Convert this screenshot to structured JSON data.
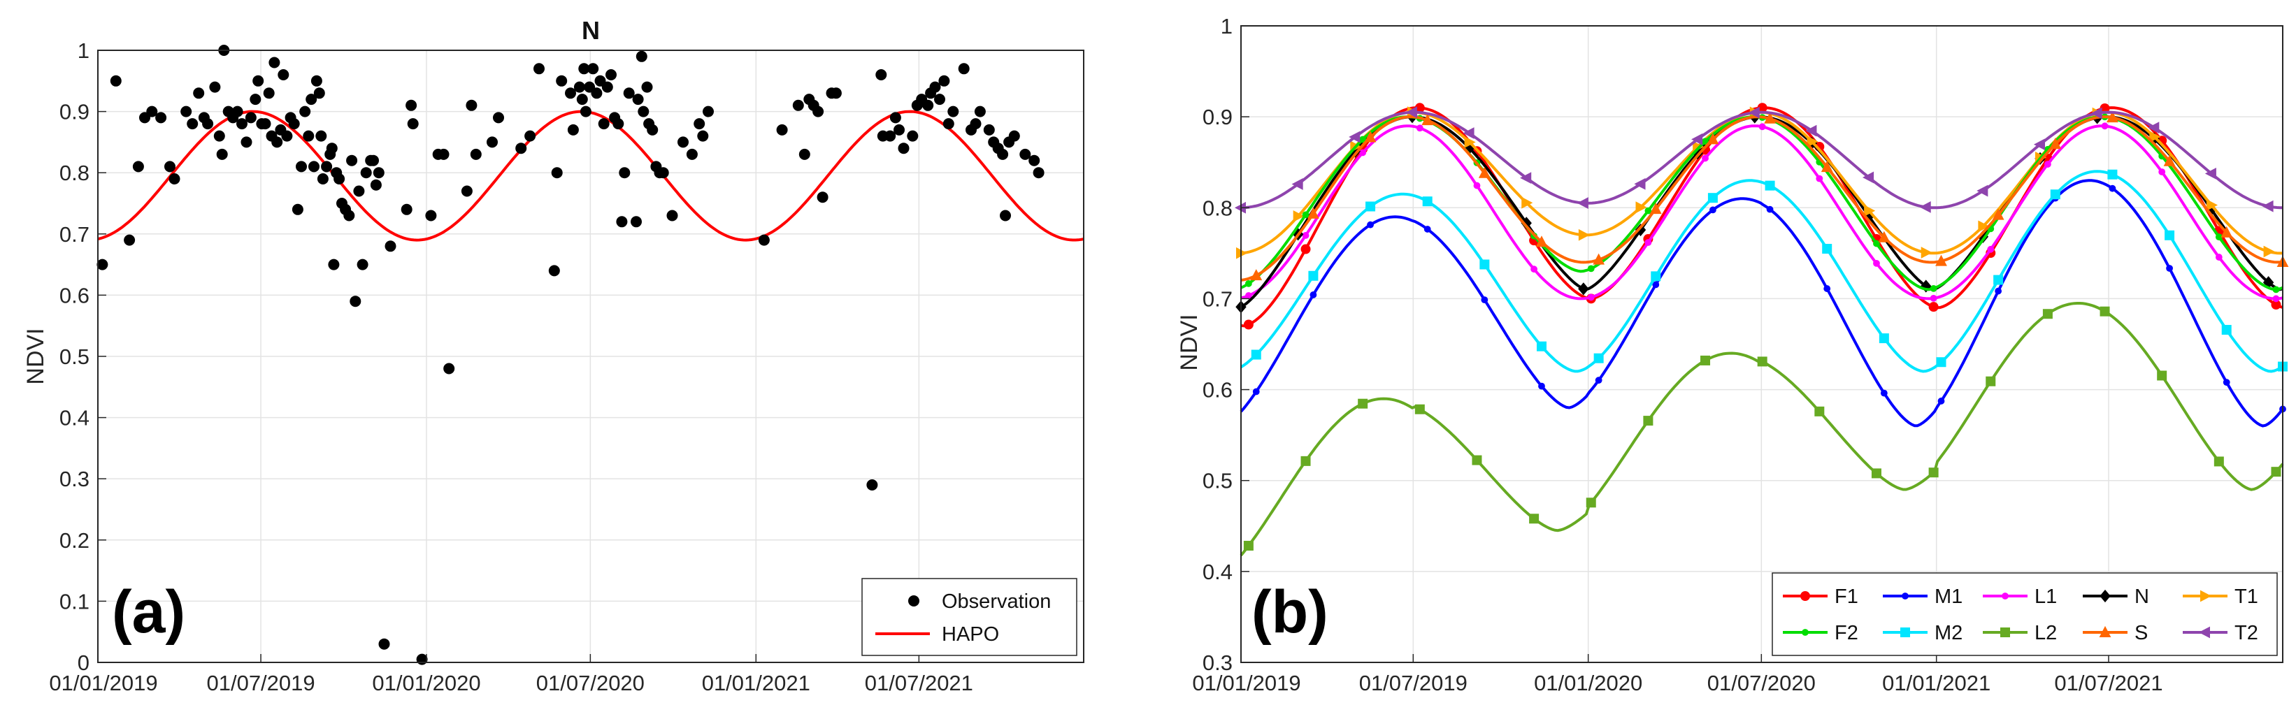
{
  "chart_data": [
    {
      "panel": "(a)",
      "type": "scatter",
      "title": "N",
      "ylabel": "NDVI",
      "xlabel": "",
      "ylim": [
        0,
        1
      ],
      "yticks": [
        "0",
        "0.1",
        "0.2",
        "0.3",
        "0.4",
        "0.5",
        "0.6",
        "0.7",
        "0.8",
        "0.9",
        "1"
      ],
      "xlim": [
        0,
        1095
      ],
      "xticks": [
        {
          "day": 0,
          "label": "01/01/2019"
        },
        {
          "day": 181,
          "label": "01/07/2019"
        },
        {
          "day": 365,
          "label": "01/01/2020"
        },
        {
          "day": 547,
          "label": "01/07/2020"
        },
        {
          "day": 731,
          "label": "01/01/2021"
        },
        {
          "day": 912,
          "label": "01/07/2021"
        }
      ],
      "grid": true,
      "legend": {
        "position": "bottom-right",
        "entries": [
          {
            "name": "Observation",
            "marker": "dot"
          },
          {
            "name": "HAPO",
            "marker": "line"
          }
        ]
      },
      "hapo_model": {
        "mean": 0.795,
        "amplitude": 0.105,
        "peak_day": 172,
        "period_days": 365
      },
      "observations": [
        [
          5,
          0.65
        ],
        [
          20,
          0.95
        ],
        [
          35,
          0.69
        ],
        [
          45,
          0.81
        ],
        [
          52,
          0.89
        ],
        [
          60,
          0.9
        ],
        [
          70,
          0.89
        ],
        [
          80,
          0.81
        ],
        [
          85,
          0.79
        ],
        [
          98,
          0.9
        ],
        [
          105,
          0.88
        ],
        [
          112,
          0.93
        ],
        [
          118,
          0.89
        ],
        [
          122,
          0.88
        ],
        [
          130,
          0.94
        ],
        [
          135,
          0.86
        ],
        [
          138,
          0.83
        ],
        [
          140,
          1.0
        ],
        [
          145,
          0.9
        ],
        [
          150,
          0.89
        ],
        [
          155,
          0.9
        ],
        [
          160,
          0.88
        ],
        [
          165,
          0.85
        ],
        [
          170,
          0.89
        ],
        [
          175,
          0.92
        ],
        [
          178,
          0.95
        ],
        [
          182,
          0.88
        ],
        [
          186,
          0.88
        ],
        [
          190,
          0.93
        ],
        [
          193,
          0.86
        ],
        [
          196,
          0.98
        ],
        [
          199,
          0.85
        ],
        [
          203,
          0.87
        ],
        [
          206,
          0.96
        ],
        [
          210,
          0.86
        ],
        [
          214,
          0.89
        ],
        [
          218,
          0.88
        ],
        [
          222,
          0.74
        ],
        [
          226,
          0.81
        ],
        [
          230,
          0.9
        ],
        [
          234,
          0.86
        ],
        [
          237,
          0.92
        ],
        [
          240,
          0.81
        ],
        [
          243,
          0.95
        ],
        [
          246,
          0.93
        ],
        [
          248,
          0.86
        ],
        [
          250,
          0.79
        ],
        [
          254,
          0.81
        ],
        [
          258,
          0.83
        ],
        [
          260,
          0.84
        ],
        [
          262,
          0.65
        ],
        [
          265,
          0.8
        ],
        [
          268,
          0.79
        ],
        [
          271,
          0.75
        ],
        [
          275,
          0.74
        ],
        [
          279,
          0.73
        ],
        [
          282,
          0.82
        ],
        [
          286,
          0.59
        ],
        [
          290,
          0.77
        ],
        [
          294,
          0.65
        ],
        [
          298,
          0.8
        ],
        [
          303,
          0.82
        ],
        [
          306,
          0.82
        ],
        [
          309,
          0.78
        ],
        [
          312,
          0.8
        ],
        [
          318,
          0.03
        ],
        [
          325,
          0.68
        ],
        [
          343,
          0.74
        ],
        [
          348,
          0.91
        ],
        [
          350,
          0.88
        ],
        [
          360,
          0.005
        ],
        [
          370,
          0.73
        ],
        [
          378,
          0.83
        ],
        [
          384,
          0.83
        ],
        [
          390,
          0.48
        ],
        [
          410,
          0.77
        ],
        [
          415,
          0.91
        ],
        [
          420,
          0.83
        ],
        [
          438,
          0.85
        ],
        [
          445,
          0.89
        ],
        [
          470,
          0.84
        ],
        [
          480,
          0.86
        ],
        [
          490,
          0.97
        ],
        [
          507,
          0.64
        ],
        [
          510,
          0.8
        ],
        [
          515,
          0.95
        ],
        [
          525,
          0.93
        ],
        [
          528,
          0.87
        ],
        [
          535,
          0.94
        ],
        [
          538,
          0.92
        ],
        [
          540,
          0.97
        ],
        [
          542,
          0.9
        ],
        [
          546,
          0.94
        ],
        [
          550,
          0.97
        ],
        [
          554,
          0.93
        ],
        [
          558,
          0.95
        ],
        [
          562,
          0.88
        ],
        [
          566,
          0.94
        ],
        [
          570,
          0.96
        ],
        [
          574,
          0.89
        ],
        [
          578,
          0.88
        ],
        [
          582,
          0.72
        ],
        [
          585,
          0.8
        ],
        [
          590,
          0.93
        ],
        [
          598,
          0.72
        ],
        [
          600,
          0.92
        ],
        [
          604,
          0.99
        ],
        [
          606,
          0.9
        ],
        [
          610,
          0.94
        ],
        [
          612,
          0.88
        ],
        [
          616,
          0.87
        ],
        [
          620,
          0.81
        ],
        [
          624,
          0.8
        ],
        [
          628,
          0.8
        ],
        [
          638,
          0.73
        ],
        [
          650,
          0.85
        ],
        [
          660,
          0.83
        ],
        [
          668,
          0.88
        ],
        [
          672,
          0.86
        ],
        [
          678,
          0.9
        ],
        [
          740,
          0.69
        ],
        [
          760,
          0.87
        ],
        [
          778,
          0.91
        ],
        [
          785,
          0.83
        ],
        [
          790,
          0.92
        ],
        [
          795,
          0.91
        ],
        [
          800,
          0.9
        ],
        [
          805,
          0.76
        ],
        [
          815,
          0.93
        ],
        [
          820,
          0.93
        ],
        [
          860,
          0.29
        ],
        [
          870,
          0.96
        ],
        [
          872,
          0.86
        ],
        [
          880,
          0.86
        ],
        [
          886,
          0.89
        ],
        [
          890,
          0.87
        ],
        [
          895,
          0.84
        ],
        [
          905,
          0.86
        ],
        [
          910,
          0.91
        ],
        [
          915,
          0.92
        ],
        [
          922,
          0.91
        ],
        [
          925,
          0.93
        ],
        [
          930,
          0.94
        ],
        [
          935,
          0.92
        ],
        [
          940,
          0.95
        ],
        [
          945,
          0.88
        ],
        [
          950,
          0.9
        ],
        [
          962,
          0.97
        ],
        [
          970,
          0.87
        ],
        [
          975,
          0.88
        ],
        [
          980,
          0.9
        ],
        [
          990,
          0.87
        ],
        [
          995,
          0.85
        ],
        [
          1000,
          0.84
        ],
        [
          1005,
          0.83
        ],
        [
          1008,
          0.73
        ],
        [
          1012,
          0.85
        ],
        [
          1018,
          0.86
        ],
        [
          1030,
          0.83
        ],
        [
          1040,
          0.82
        ],
        [
          1045,
          0.8
        ]
      ]
    },
    {
      "panel": "(b)",
      "type": "line",
      "title": "",
      "ylabel": "NDVI",
      "xlabel": "",
      "ylim": [
        0.3,
        1
      ],
      "yticks": [
        "0.3",
        "0.4",
        "0.5",
        "0.6",
        "0.7",
        "0.8",
        "0.9",
        "1"
      ],
      "xlim": [
        0,
        1095
      ],
      "xticks": [
        {
          "day": 0,
          "label": "01/01/2019"
        },
        {
          "day": 181,
          "label": "01/07/2019"
        },
        {
          "day": 365,
          "label": "01/01/2020"
        },
        {
          "day": 547,
          "label": "01/07/2020"
        },
        {
          "day": 731,
          "label": "01/01/2021"
        },
        {
          "day": 912,
          "label": "01/07/2021"
        }
      ],
      "grid": true,
      "legend": {
        "position": "bottom-right",
        "columns": 5
      },
      "series": [
        {
          "name": "F1",
          "color": "#ff0000",
          "marker": "circle",
          "min": 0.67,
          "max": 0.91,
          "peak_day": 185,
          "sharp": 1.2,
          "min_offsets": [
            0,
            0.03,
            0.02
          ]
        },
        {
          "name": "M1",
          "color": "#0000ff",
          "marker": "dot",
          "min": 0.56,
          "max": 0.81,
          "peak_day": 162,
          "sharp": 1.3,
          "min_offsets": [
            0,
            0.02,
            0
          ],
          "max_offsets": [
            -0.02,
            0,
            0.02
          ]
        },
        {
          "name": "L1",
          "color": "#ff00ff",
          "marker": "dot",
          "min": 0.7,
          "max": 0.89,
          "peak_day": 175,
          "sharp": 1.0,
          "min_offsets": [
            0,
            0,
            0
          ]
        },
        {
          "name": "N",
          "color": "#000000",
          "marker": "diamond",
          "min": 0.69,
          "max": 0.9,
          "peak_day": 180,
          "sharp": 1.4,
          "min_offsets": [
            0,
            0.02,
            0.02
          ]
        },
        {
          "name": "T1",
          "color": "#ffa500",
          "marker": "triangle-right",
          "min": 0.75,
          "max": 0.905,
          "peak_day": 180,
          "sharp": 1.0,
          "min_offsets": [
            0,
            0.02,
            0
          ]
        },
        {
          "name": "F2",
          "color": "#00dd00",
          "marker": "dot",
          "min": 0.71,
          "max": 0.9,
          "peak_day": 175,
          "sharp": 1.2,
          "min_offsets": [
            0,
            0.02,
            0
          ]
        },
        {
          "name": "M2",
          "color": "#00e5ff",
          "marker": "square",
          "min": 0.62,
          "max": 0.83,
          "peak_day": 170,
          "sharp": 1.2,
          "min_offsets": [
            0,
            0,
            0
          ],
          "max_offsets": [
            -0.015,
            0,
            0.01
          ]
        },
        {
          "name": "L2",
          "color": "#66aa22",
          "marker": "square",
          "min": 0.39,
          "max": 0.64,
          "peak_day": 150,
          "sharp": 1.3,
          "min_offsets": [
            0,
            0.055,
            0.1
          ],
          "max_offsets": [
            -0.05,
            0,
            0.055
          ]
        },
        {
          "name": "S",
          "color": "#ff6600",
          "marker": "triangle-up",
          "min": 0.72,
          "max": 0.9,
          "peak_day": 178,
          "sharp": 1.0,
          "min_offsets": [
            0,
            0.02,
            0.02
          ]
        },
        {
          "name": "T2",
          "color": "#8e44ad",
          "marker": "triangle-left",
          "min": 0.8,
          "max": 0.905,
          "peak_day": 182,
          "sharp": 1.0,
          "min_offsets": [
            0,
            0.005,
            0
          ]
        }
      ]
    }
  ]
}
